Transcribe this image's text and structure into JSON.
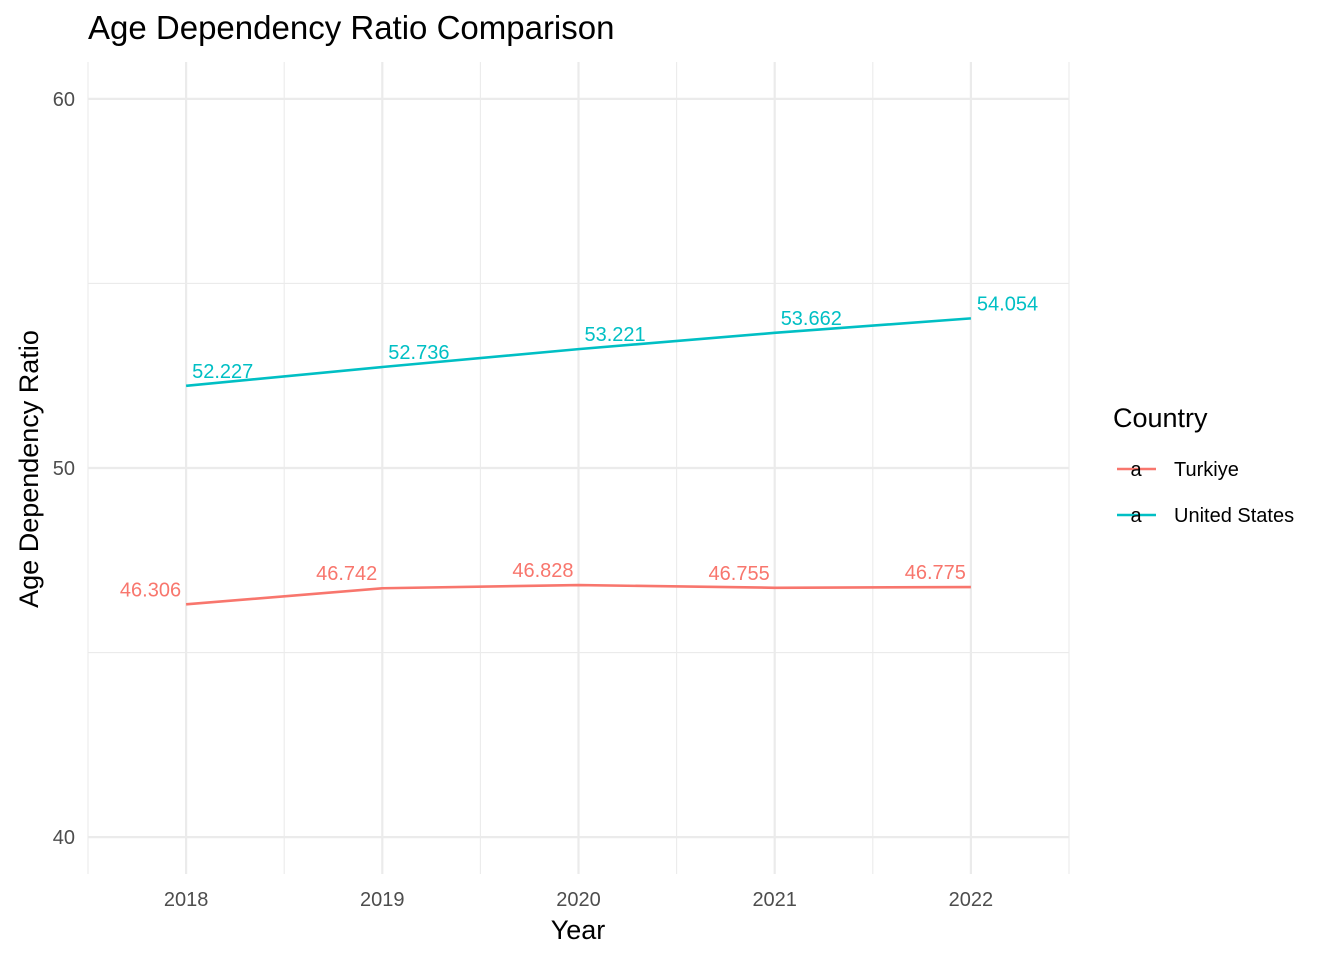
{
  "chart_data": {
    "type": "line",
    "title": "Age Dependency Ratio Comparison",
    "xlabel": "Year",
    "ylabel": "Age Dependency Ratio",
    "x": [
      2018,
      2019,
      2020,
      2021,
      2022
    ],
    "x_ticks": [
      "2018",
      "2019",
      "2020",
      "2021",
      "2022"
    ],
    "y_ticks": [
      "40",
      "50",
      "60"
    ],
    "xlim": [
      2017.5,
      2022.5
    ],
    "ylim": [
      39,
      61
    ],
    "grid": true,
    "legend": {
      "title": "Country",
      "position": "right"
    },
    "series": [
      {
        "name": "Turkiye",
        "color": "#F8766D",
        "values": [
          46.306,
          46.742,
          46.828,
          46.755,
          46.775
        ],
        "labels": [
          "46.306",
          "46.742",
          "46.828",
          "46.755",
          "46.775"
        ]
      },
      {
        "name": "United States",
        "color": "#00BFC4",
        "values": [
          52.227,
          52.736,
          53.221,
          53.662,
          54.054
        ],
        "labels": [
          "52.227",
          "52.736",
          "53.221",
          "53.662",
          "54.054"
        ]
      }
    ]
  },
  "legend_key_glyph": "a"
}
